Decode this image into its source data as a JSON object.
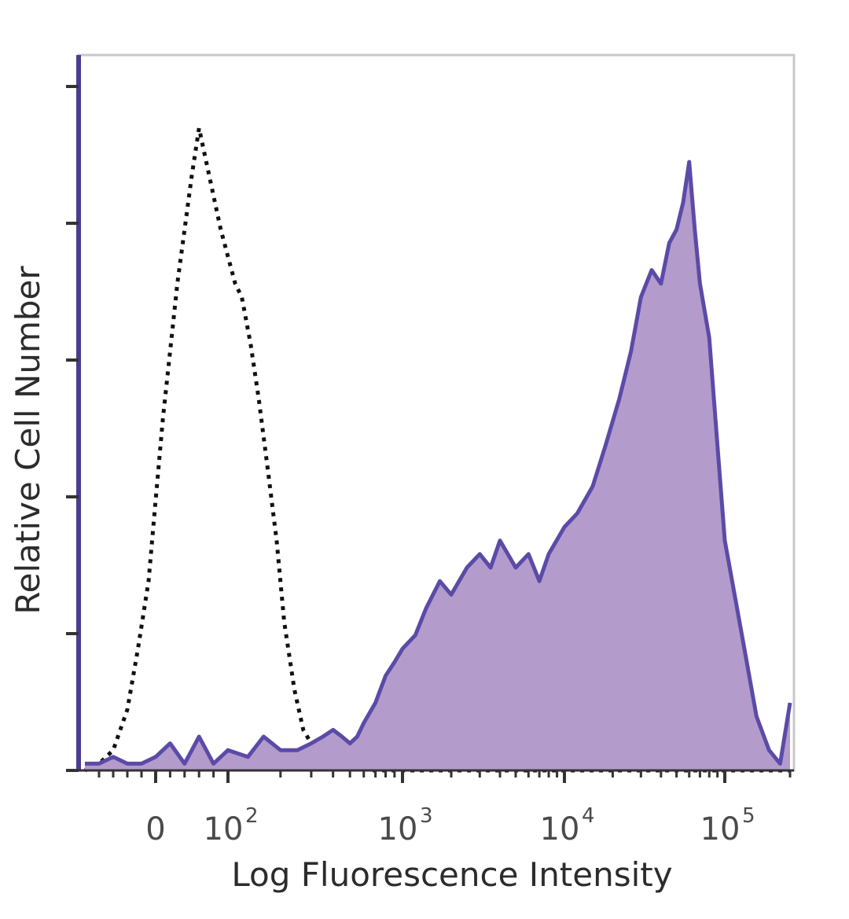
{
  "chart_data": {
    "type": "area",
    "title": "",
    "xlabel": "Log Fluorescence Intensity",
    "ylabel": "Relative Cell Number",
    "x_scale": "biexponential",
    "xlim": [
      -100,
      200000
    ],
    "ylim": [
      0,
      100
    ],
    "x_ticks": [
      {
        "value": 0,
        "base": "0",
        "exp": ""
      },
      {
        "value": 100,
        "base": "10",
        "exp": "2"
      },
      {
        "value": 1000,
        "base": "10",
        "exp": "3"
      },
      {
        "value": 10000,
        "base": "10",
        "exp": "4"
      },
      {
        "value": 100000,
        "base": "10",
        "exp": "5"
      }
    ],
    "y_ticks_count": 6,
    "grid": false,
    "legend": "none",
    "colors": {
      "stained": "#5b4ba8",
      "stained_fill": "#b39ccb",
      "control": "#111111",
      "frame": "#c8c8c8",
      "axis": "#4a3d8f"
    },
    "series": [
      {
        "style": "dotted-line",
        "color": "#111111",
        "x": [
          -100,
          -80,
          -60,
          -40,
          -25,
          -10,
          0,
          10,
          20,
          30,
          40,
          50,
          60,
          70,
          80,
          90,
          100,
          110,
          120,
          135,
          150,
          170,
          190,
          210,
          240,
          270,
          300,
          340,
          380,
          420,
          470,
          520,
          580,
          650,
          800,
          1000,
          2000,
          5000,
          20000,
          100000,
          200000
        ],
        "y": [
          0,
          1,
          3,
          9,
          18,
          28,
          40,
          52,
          62,
          72,
          80,
          88,
          95,
          90,
          85,
          80,
          76,
          72,
          70,
          63,
          55,
          44,
          34,
          22,
          12,
          6,
          4,
          3,
          2,
          3,
          2,
          1,
          1,
          0,
          0,
          0,
          0,
          0,
          0,
          0,
          0
        ]
      },
      {
        "style": "filled-histogram",
        "color": "#5b4ba8",
        "fill": "#b39ccb",
        "x": [
          -100,
          -80,
          -60,
          -40,
          -20,
          0,
          20,
          40,
          60,
          80,
          100,
          130,
          160,
          200,
          250,
          300,
          350,
          400,
          450,
          500,
          550,
          600,
          700,
          800,
          900,
          1000,
          1200,
          1400,
          1700,
          2000,
          2500,
          3000,
          3500,
          4000,
          5000,
          6000,
          7000,
          8000,
          10000,
          12000,
          15000,
          18000,
          22000,
          26000,
          30000,
          35000,
          40000,
          45000,
          50000,
          55000,
          60000,
          65000,
          70000,
          80000,
          90000,
          100000,
          120000,
          140000,
          160000,
          180000,
          200000
        ],
        "y": [
          1,
          1,
          2,
          1,
          1,
          2,
          4,
          1,
          5,
          1,
          3,
          2,
          5,
          3,
          3,
          4,
          5,
          6,
          5,
          4,
          5,
          7,
          10,
          14,
          16,
          18,
          20,
          24,
          28,
          26,
          30,
          32,
          30,
          34,
          30,
          32,
          28,
          32,
          36,
          38,
          42,
          48,
          55,
          62,
          70,
          74,
          72,
          78,
          80,
          84,
          90,
          80,
          72,
          64,
          48,
          34,
          20,
          8,
          3,
          1,
          10
        ]
      }
    ]
  }
}
